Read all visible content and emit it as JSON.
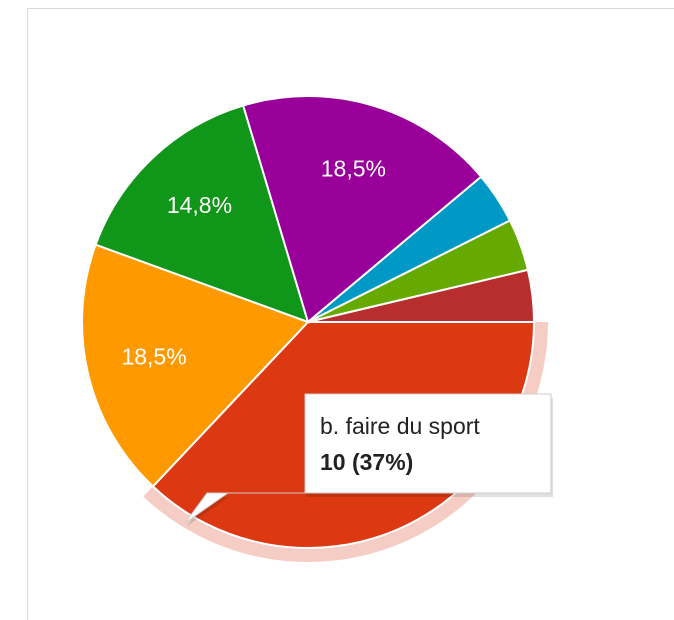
{
  "chart_data": {
    "type": "pie",
    "categories": [
      "b. faire du sport",
      null,
      null,
      null,
      null,
      null,
      null
    ],
    "values": [
      37,
      18.5,
      14.8,
      18.5,
      3.7,
      3.7,
      3.7
    ],
    "value_labels": [
      null,
      "18,5%",
      "14,8%",
      "18,5%",
      null,
      null,
      null
    ],
    "colors": [
      "#dc3912",
      "#ff9900",
      "#109618",
      "#990099",
      "#0099c6",
      "#66aa00",
      "#b82e2e"
    ],
    "highlight": 0,
    "tooltip": {
      "category": "b. faire du sport",
      "text": "10 (37%)"
    }
  }
}
